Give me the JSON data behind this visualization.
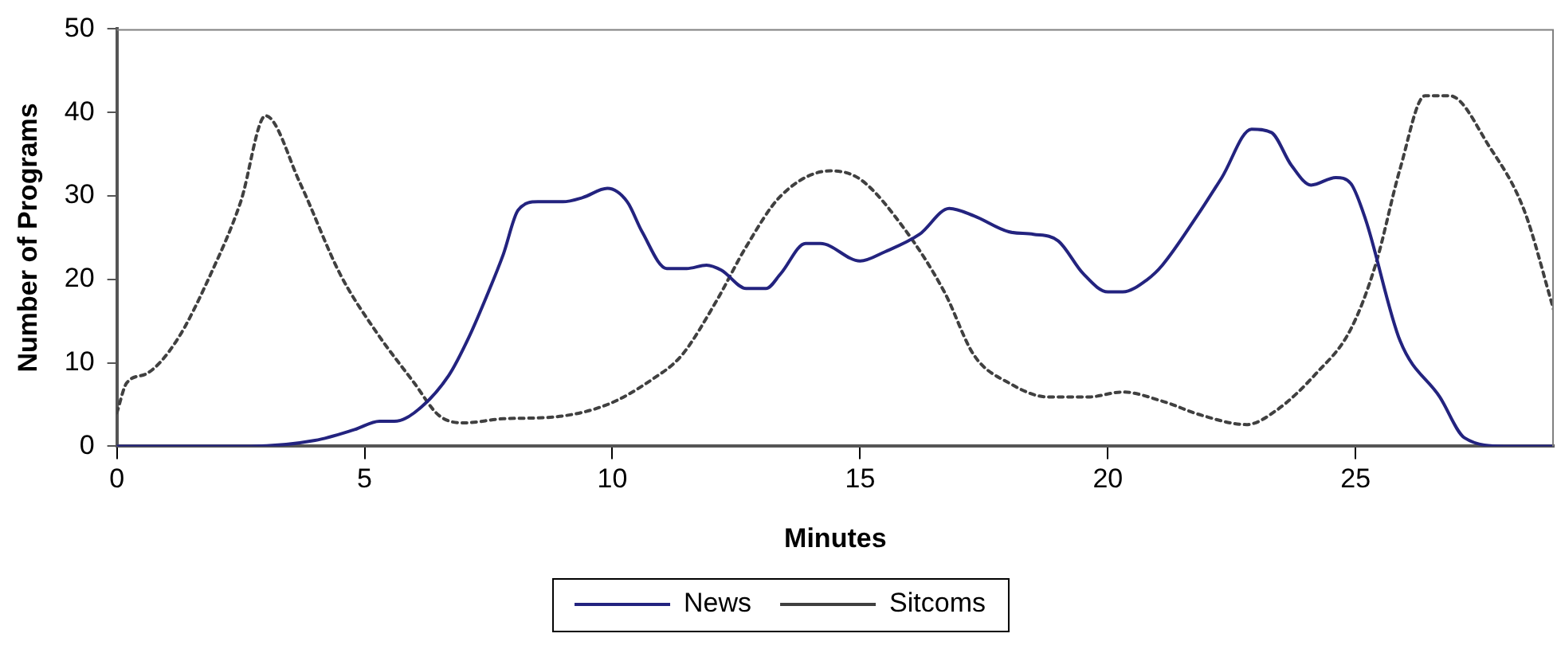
{
  "chart_data": {
    "type": "line",
    "xlabel": "Minutes",
    "ylabel": "Number of Programs",
    "xlim": [
      0,
      29
    ],
    "xticks": [
      0,
      5,
      10,
      15,
      20,
      25
    ],
    "ylim": [
      0,
      50
    ],
    "yticks": [
      0,
      10,
      20,
      30,
      40,
      50
    ],
    "grid": false,
    "legend": "bottom",
    "marker": "none",
    "series": [
      {
        "name": "News",
        "color": "#23237f",
        "line_style": "solid",
        "x": [
          0,
          2.7,
          4,
          4.8,
          5.3,
          5.6,
          6,
          6.7,
          7.1,
          7.5,
          7.8,
          8.1,
          8.5,
          9,
          9.4,
          9.9,
          10.3,
          10.6,
          11.1,
          11.5,
          11.9,
          12.2,
          12.7,
          13.1,
          13.4,
          13.9,
          14.2,
          15,
          15.5,
          16.2,
          16.8,
          17.3,
          18,
          18.5,
          19,
          19.5,
          20,
          20.3,
          20.8,
          21.1,
          21.8,
          22.3,
          22.9,
          23.3,
          23.7,
          24.1,
          24.6,
          24.9,
          25.2,
          25.9,
          26.7,
          27.2,
          28,
          29
        ],
        "values": [
          0,
          0,
          0.7,
          2,
          3,
          3,
          4,
          8.5,
          13,
          18.5,
          23,
          28.3,
          29.3,
          29.3,
          29.8,
          30.9,
          29.3,
          25.7,
          21.3,
          21.3,
          21.7,
          21.1,
          18.9,
          18.9,
          20.7,
          24.3,
          24.3,
          22.2,
          23.3,
          25.4,
          28.5,
          27.6,
          25.7,
          25.4,
          24.6,
          20.7,
          18.5,
          18.5,
          20,
          21.7,
          27.6,
          32.2,
          38,
          37.6,
          33.7,
          31.3,
          32.2,
          31.5,
          27.2,
          12.6,
          5.9,
          1,
          0,
          0
        ]
      },
      {
        "name": "Sitcoms",
        "color": "#404040",
        "line_style": "dotted",
        "x": [
          0,
          0.2,
          0.6,
          1.2,
          1.9,
          2.5,
          3,
          3.7,
          4.5,
          5.2,
          6,
          6.5,
          7,
          7.8,
          8.8,
          9.9,
          10.8,
          11.4,
          12.1,
          12.7,
          13.4,
          14.4,
          15,
          15.9,
          16.7,
          17.3,
          18,
          18.8,
          19.6,
          20.3,
          21.1,
          21.9,
          22.8,
          23.4,
          24.2,
          24.9,
          25.4,
          25.9,
          26.4,
          26.9,
          27.7,
          28.4,
          29
        ],
        "values": [
          4,
          7.6,
          8.7,
          12.6,
          20.7,
          29.3,
          39.6,
          31.5,
          20.7,
          14,
          7.6,
          3.7,
          2.8,
          3.3,
          3.5,
          5,
          8,
          10.9,
          17.4,
          23.9,
          30,
          33,
          32,
          26,
          18.5,
          10.9,
          7.6,
          5.9,
          5.9,
          6.5,
          5.4,
          3.7,
          2.6,
          4.3,
          8.7,
          14,
          21.7,
          33.3,
          42,
          42,
          35.9,
          28.3,
          16.3
        ]
      }
    ]
  }
}
